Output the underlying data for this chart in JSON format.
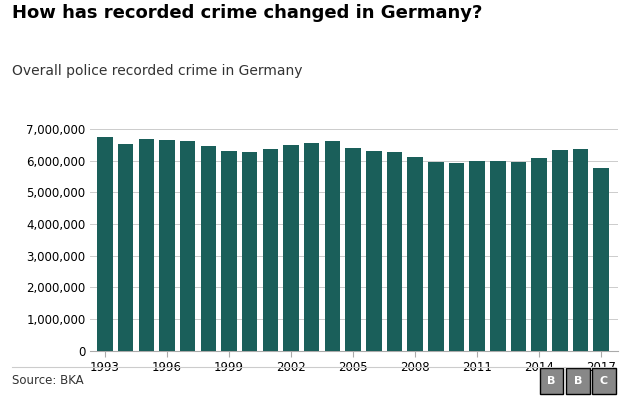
{
  "title": "How has recorded crime changed in Germany?",
  "subtitle": "Overall police recorded crime in Germany",
  "source": "Source: BKA",
  "years": [
    1993,
    1994,
    1995,
    1996,
    1997,
    1998,
    1999,
    2000,
    2001,
    2002,
    2003,
    2004,
    2005,
    2006,
    2007,
    2008,
    2009,
    2010,
    2011,
    2012,
    2013,
    2014,
    2015,
    2016,
    2017
  ],
  "values": [
    6750000,
    6537000,
    6668000,
    6647000,
    6627000,
    6456000,
    6302000,
    6264000,
    6363000,
    6507000,
    6572000,
    6633000,
    6391000,
    6304000,
    6284000,
    6114000,
    5961000,
    5933000,
    5990000,
    5997000,
    5961000,
    6082000,
    6330000,
    6372000,
    5762000
  ],
  "bar_color": "#1a5f5a",
  "ylim": [
    0,
    7000000
  ],
  "yticks": [
    0,
    1000000,
    2000000,
    3000000,
    4000000,
    5000000,
    6000000,
    7000000
  ],
  "xticks": [
    1993,
    1996,
    1999,
    2002,
    2005,
    2008,
    2011,
    2014,
    2017
  ],
  "bg_color": "#ffffff",
  "grid_color": "#cccccc",
  "title_fontsize": 13,
  "subtitle_fontsize": 10,
  "source_fontsize": 8.5,
  "bbc_box_color": "#888888",
  "bbc_text_color": "#ffffff"
}
